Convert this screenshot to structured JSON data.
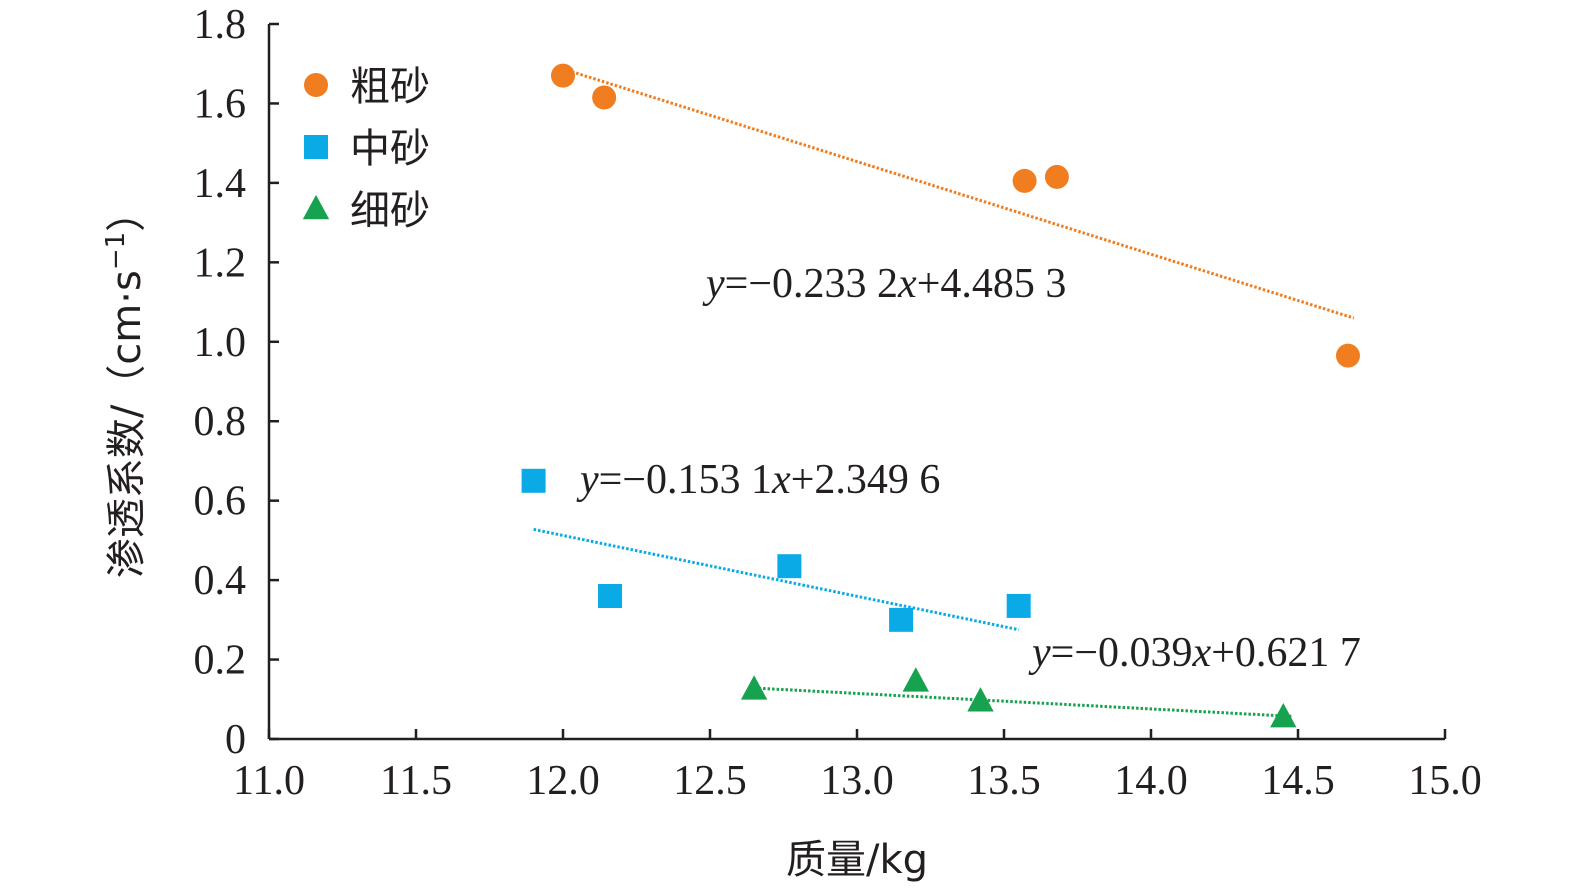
{
  "chart_data": {
    "type": "scatter",
    "xlabel": "质量/kg",
    "ylabel_main": "渗透系数/（",
    "ylabel_unit": "cm·s",
    "ylabel_exp": "−1",
    "ylabel_close": "）",
    "xlim": [
      11.0,
      15.0
    ],
    "ylim": [
      0,
      1.8
    ],
    "x_ticks": [
      "11.0",
      "11.5",
      "12.0",
      "12.5",
      "13.0",
      "13.5",
      "14.0",
      "14.5",
      "15.0"
    ],
    "y_ticks": [
      "0",
      "0.2",
      "0.4",
      "0.6",
      "0.8",
      "1.0",
      "1.2",
      "1.4",
      "1.6",
      "1.8"
    ],
    "grid": false,
    "legend_position": "top-left",
    "series": [
      {
        "name": "粗砂",
        "marker": "circle",
        "color": "#f07d1f",
        "points": [
          [
            12.0,
            1.67
          ],
          [
            12.14,
            1.615
          ],
          [
            13.57,
            1.405
          ],
          [
            13.68,
            1.415
          ],
          [
            14.67,
            0.965
          ]
        ],
        "trendline": {
          "slope": -0.2332,
          "intercept": 4.4853,
          "x_range": [
            12.03,
            14.69
          ]
        },
        "equation": {
          "y": "y",
          "eq": "=−0.233 2",
          "x": "x",
          "rest": "+4.485 3"
        }
      },
      {
        "name": "中砂",
        "marker": "square",
        "color": "#0aaae6",
        "points": [
          [
            11.9,
            0.65
          ],
          [
            12.16,
            0.36
          ],
          [
            12.77,
            0.435
          ],
          [
            13.15,
            0.3
          ],
          [
            13.55,
            0.335
          ]
        ],
        "trendline": {
          "slope": -0.1531,
          "intercept": 2.3496,
          "x_range": [
            11.9,
            13.55
          ]
        },
        "equation": {
          "y": "y",
          "eq": "=−0.153 1",
          "x": "x",
          "rest": "+2.349 6"
        }
      },
      {
        "name": "细砂",
        "marker": "triangle",
        "color": "#16a24e",
        "points": [
          [
            12.65,
            0.125
          ],
          [
            13.2,
            0.145
          ],
          [
            13.42,
            0.095
          ],
          [
            14.45,
            0.055
          ]
        ],
        "trendline": {
          "slope": -0.039,
          "intercept": 0.6217,
          "x_range": [
            12.65,
            14.48
          ]
        },
        "equation": {
          "y": "y",
          "eq": "=−0.039",
          "x": "x",
          "rest": "+0.621 7"
        }
      }
    ]
  }
}
